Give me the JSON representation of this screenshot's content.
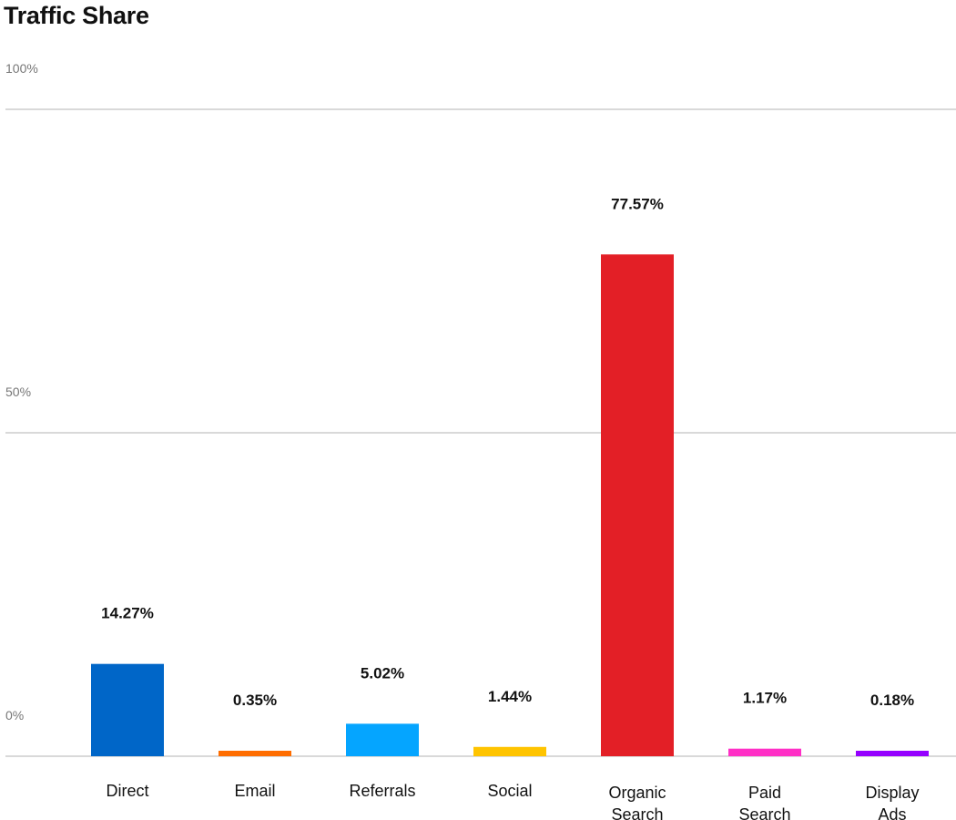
{
  "chart_data": {
    "type": "bar",
    "title": "Traffic Share",
    "xlabel": "",
    "ylabel": "",
    "ylim": [
      0,
      100
    ],
    "yticks": [
      0,
      50,
      100
    ],
    "ytick_labels": [
      "0%",
      "50%",
      "100%"
    ],
    "grid": true,
    "categories": [
      [
        "Direct"
      ],
      [
        "Email"
      ],
      [
        "Referrals"
      ],
      [
        "Social"
      ],
      [
        "Organic",
        "Search"
      ],
      [
        "Paid",
        "Search"
      ],
      [
        "Display",
        "Ads"
      ]
    ],
    "values": [
      14.27,
      0.35,
      5.02,
      1.44,
      77.57,
      1.17,
      0.18
    ],
    "value_labels": [
      "14.27%",
      "0.35%",
      "5.02%",
      "1.44%",
      "77.57%",
      "1.17%",
      "0.18%"
    ],
    "colors": [
      "#0066c8",
      "#ff6d00",
      "#05a5ff",
      "#ffc400",
      "#e31f26",
      "#ff2fc6",
      "#9500ff"
    ]
  }
}
